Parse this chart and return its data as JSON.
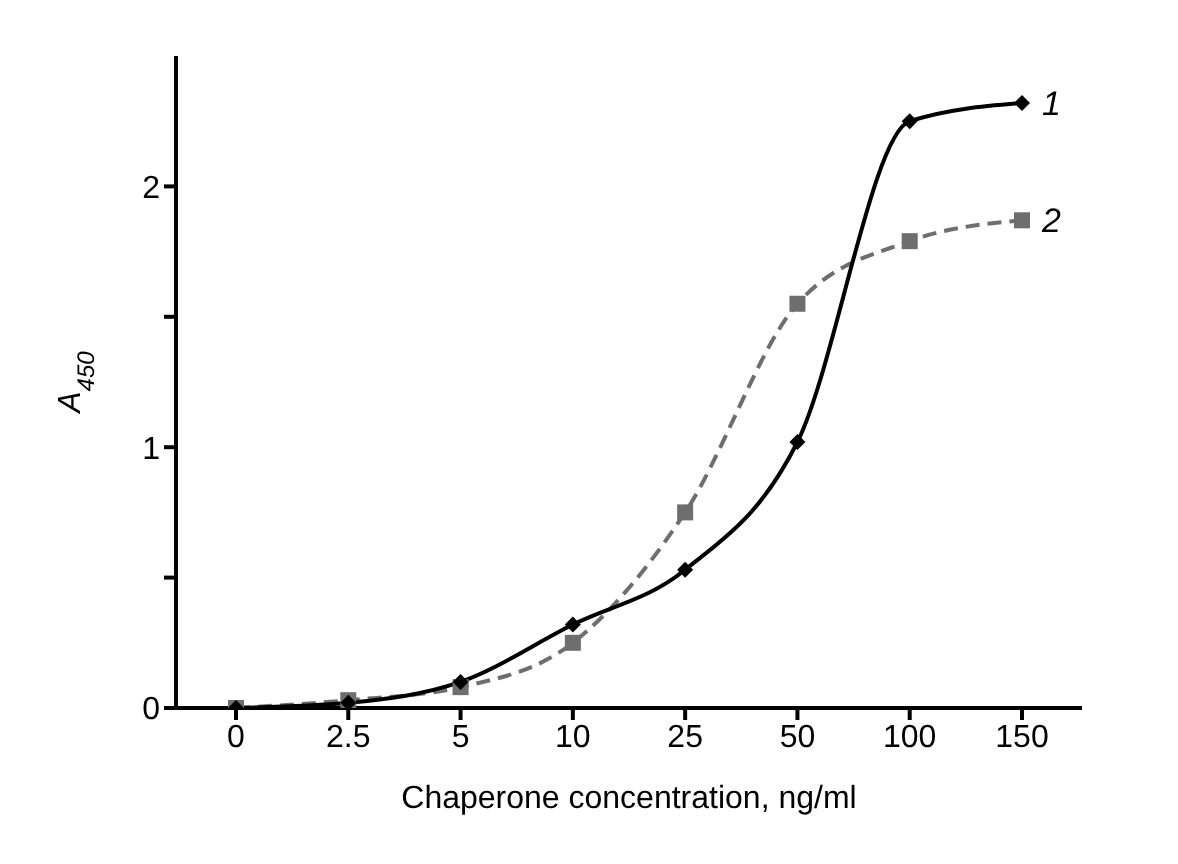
{
  "chart_data": {
    "type": "line",
    "xlabel": "Chaperone concentration, ng/ml",
    "ylabel": "A$_{450}$",
    "categories": [
      "0",
      "2.5",
      "5",
      "10",
      "25",
      "50",
      "100",
      "150"
    ],
    "ylim": [
      0,
      2.5
    ],
    "yticks": [
      0,
      {
        "value": 0.5,
        "label": null
      },
      1,
      {
        "value": 1.5,
        "label": null
      },
      2
    ],
    "grid": false,
    "legend": false,
    "series": [
      {
        "name": "1",
        "color": "#000000",
        "marker": "diamond",
        "line_style": "solid",
        "values": [
          0,
          0.02,
          0.1,
          0.32,
          0.53,
          1.02,
          2.25,
          2.32
        ]
      },
      {
        "name": "2",
        "color": "#6e6e6e",
        "marker": "square",
        "line_style": "dashed",
        "values": [
          0,
          0.03,
          0.08,
          0.25,
          0.75,
          1.55,
          1.79,
          1.87
        ]
      }
    ]
  }
}
